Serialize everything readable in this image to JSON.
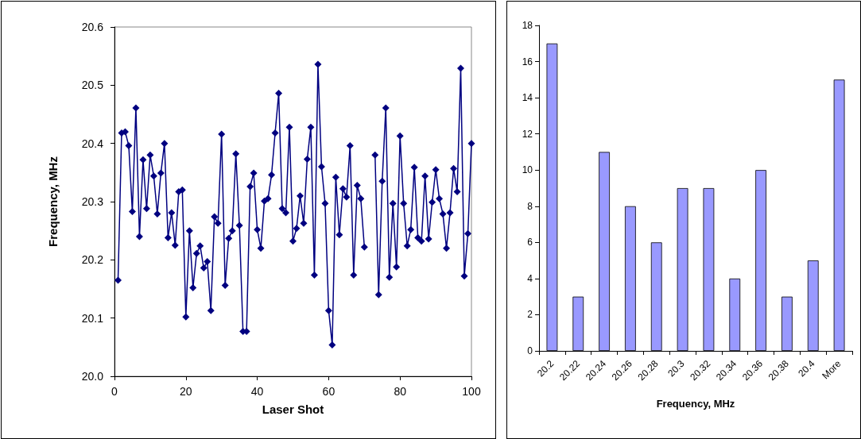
{
  "chart_data": [
    {
      "type": "line",
      "xlabel": "Laser Shot",
      "ylabel": "Frequency, MHz",
      "xlim": [
        0,
        100
      ],
      "xticks": [
        0,
        20,
        40,
        60,
        80,
        100
      ],
      "ylim": [
        20.0,
        20.6
      ],
      "yticks": [
        {
          "value": 20.0,
          "label": "20.0"
        },
        {
          "value": 20.1,
          "label": "20.1"
        },
        {
          "value": 20.2,
          "label": "20.2"
        },
        {
          "value": 20.3,
          "label": "20.3"
        },
        {
          "value": 20.4,
          "label": "20.4"
        },
        {
          "value": 20.5,
          "label": "20.5"
        },
        {
          "value": 20.6,
          "label": "20.6"
        }
      ],
      "marker": "diamond",
      "line_style": "solid",
      "x": [
        1,
        2,
        3,
        4,
        5,
        6,
        7,
        8,
        9,
        10,
        11,
        12,
        13,
        14,
        15,
        16,
        17,
        18,
        19,
        20,
        21,
        22,
        23,
        24,
        25,
        26,
        27,
        28,
        29,
        30,
        31,
        32,
        33,
        34,
        35,
        36,
        37,
        38,
        39,
        40,
        41,
        42,
        43,
        44,
        45,
        46,
        47,
        48,
        49,
        50,
        51,
        52,
        53,
        54,
        55,
        56,
        57,
        58,
        59,
        60,
        61,
        62,
        63,
        64,
        65,
        66,
        67,
        68,
        69,
        70,
        71,
        72,
        73,
        74,
        75,
        76,
        77,
        78,
        79,
        80,
        81,
        82,
        83,
        84,
        85,
        86,
        87,
        88,
        89,
        90,
        91,
        92,
        93,
        94,
        95,
        96,
        97,
        98,
        99,
        100
      ],
      "series": [
        {
          "color": "#000080",
          "values": [
            20.165,
            20.418,
            20.42,
            20.396,
            20.283,
            20.461,
            20.24,
            20.372,
            20.288,
            20.38,
            20.344,
            20.279,
            20.349,
            20.4,
            20.238,
            20.281,
            20.225,
            20.317,
            20.32,
            20.102,
            20.25,
            20.152,
            20.211,
            20.224,
            20.186,
            20.197,
            20.113,
            20.274,
            20.263,
            20.416,
            20.156,
            20.237,
            20.25,
            20.382,
            20.259,
            20.077,
            20.077,
            20.326,
            20.349,
            20.252,
            20.22,
            20.301,
            20.305,
            20.346,
            20.418,
            20.486,
            20.288,
            20.281,
            20.428,
            20.232,
            20.254,
            20.31,
            20.263,
            20.373,
            20.428,
            20.174,
            20.536,
            20.36,
            20.297,
            20.113,
            20.054,
            20.342,
            20.243,
            20.322,
            20.308,
            20.396,
            20.174,
            20.328,
            20.305,
            20.222,
            null,
            null,
            20.38,
            20.14,
            20.335,
            20.461,
            20.17,
            20.297,
            20.188,
            20.413,
            20.297,
            20.224,
            20.252,
            20.359,
            20.238,
            20.232,
            20.344,
            20.236,
            20.299,
            20.355,
            20.305,
            20.279,
            20.22,
            20.281,
            20.357,
            20.317,
            20.529,
            20.172,
            20.245,
            20.4
          ]
        }
      ]
    },
    {
      "type": "bar",
      "xlabel": "Frequency, MHz",
      "categories": [
        "20.2",
        "20.22",
        "20.24",
        "20.26",
        "20.28",
        "20.3",
        "20.32",
        "20.34",
        "20.36",
        "20.38",
        "20.4",
        "More"
      ],
      "values": [
        17,
        3,
        11,
        8,
        6,
        9,
        9,
        4,
        10,
        3,
        5,
        15
      ],
      "color": "#9999ff",
      "ylim": [
        0,
        18
      ],
      "yticks": [
        0,
        2,
        4,
        6,
        8,
        10,
        12,
        14,
        16,
        18
      ]
    }
  ]
}
